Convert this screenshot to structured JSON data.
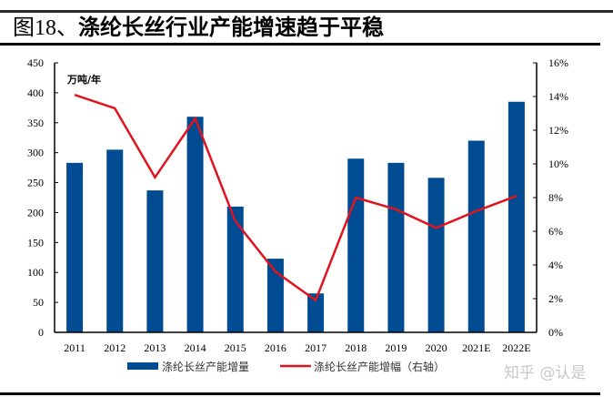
{
  "header": {
    "figure_label": "图18、",
    "title": "涤纶长丝行业产能增速趋于平稳"
  },
  "watermark": "知乎 @认是",
  "colors": {
    "bar": "#004C93",
    "line": "#E0141E",
    "axis": "#000000"
  },
  "chart_data": {
    "type": "bar+line",
    "title": "涤纶长丝行业产能增速趋于平稳",
    "unit_label": "万吨/年",
    "categories": [
      "2011",
      "2012",
      "2013",
      "2014",
      "2015",
      "2016",
      "2017",
      "2018",
      "2019",
      "2020",
      "2021E",
      "2022E"
    ],
    "series": [
      {
        "name": "涤纶长丝产能增量",
        "type": "bar",
        "axis": "left",
        "values": [
          283,
          305,
          237,
          360,
          210,
          123,
          65,
          290,
          283,
          258,
          320,
          385
        ]
      },
      {
        "name": "涤纶长丝产能增幅（右轴）",
        "type": "line",
        "axis": "right",
        "values": [
          14.1,
          13.3,
          9.2,
          12.7,
          6.6,
          3.6,
          1.9,
          8.0,
          7.3,
          6.2,
          7.2,
          8.1
        ]
      }
    ],
    "left_axis": {
      "ylim": [
        0,
        450
      ],
      "ticks": [
        "0",
        "50",
        "100",
        "150",
        "200",
        "250",
        "300",
        "350",
        "400",
        "450"
      ]
    },
    "right_axis": {
      "ylim": [
        0,
        16
      ],
      "ticks": [
        "0%",
        "2%",
        "4%",
        "6%",
        "8%",
        "10%",
        "12%",
        "14%",
        "16%"
      ]
    },
    "legend": [
      "涤纶长丝产能增量",
      "涤纶长丝产能增幅（右轴）"
    ],
    "legend_position": "bottom",
    "grid": false
  }
}
